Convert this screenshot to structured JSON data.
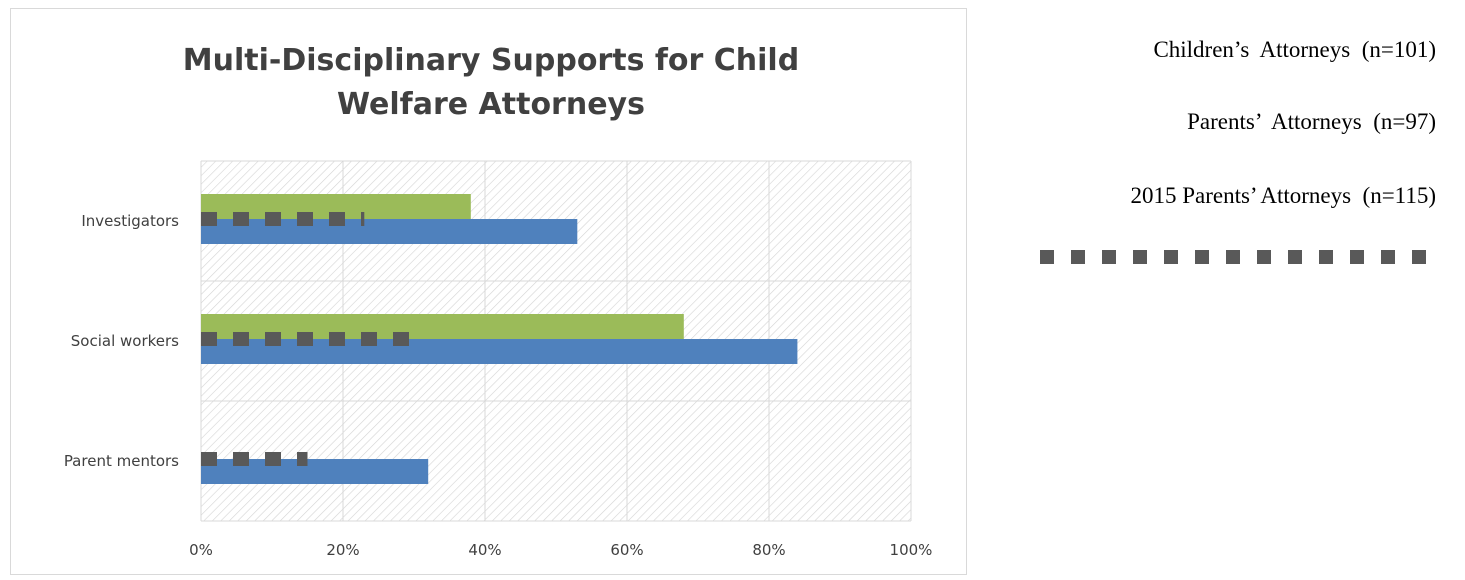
{
  "chart_data": {
    "type": "bar",
    "orientation": "horizontal",
    "title": "Multi-Disciplinary Supports for Child Welfare Attorneys",
    "title_lines": [
      "Multi-Disciplinary Supports for Child",
      "Welfare Attorneys"
    ],
    "categories": [
      "Investigators",
      "Social workers",
      "Parent mentors"
    ],
    "x_ticks": [
      "0%",
      "20%",
      "40%",
      "60%",
      "80%",
      "100%"
    ],
    "xlim": [
      0,
      100
    ],
    "x_unit": "percent",
    "grid": true,
    "legend_position": "right",
    "series": [
      {
        "name": "Children’s  Attorneys  (n=101)",
        "color": "#9bbb59",
        "style": "bar",
        "values": [
          38,
          68,
          0
        ]
      },
      {
        "name": "Parents’  Attorneys  (n=97)",
        "color": "#4f81bd",
        "style": "bar",
        "values": [
          53,
          84,
          32
        ]
      },
      {
        "name": "2015 Parents’ Attorneys  (n=115)",
        "color": "#595959",
        "style": "dotted-line",
        "values": [
          23,
          30,
          15
        ]
      }
    ]
  }
}
